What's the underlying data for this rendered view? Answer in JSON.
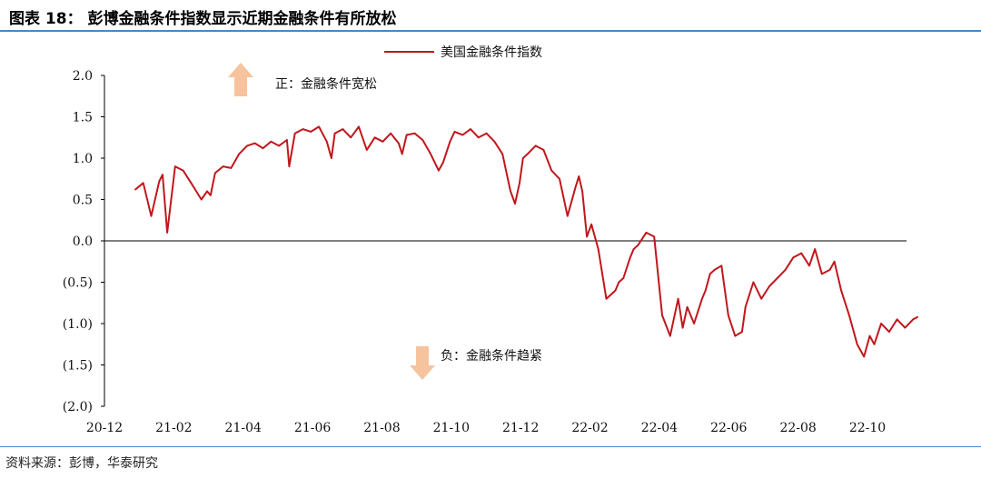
{
  "figure": {
    "title": "图表 18：   彭博金融条件指数显示近期金融条件有所放松",
    "source": "资料来源：彭博，华泰研究"
  },
  "annotations": {
    "upper": "正：金融条件宽松",
    "lower": "负：金融条件趋紧"
  },
  "colors": {
    "series": "#c0171d",
    "arrow": "#f6c39d",
    "rule": "#4a86c5"
  },
  "chart_data": {
    "type": "line",
    "title": "",
    "xlabel": "",
    "ylabel": "",
    "ylim": [
      -2.0,
      2.0
    ],
    "y_ticks": [
      "2.0",
      "1.5",
      "1.0",
      "0.5",
      "0.0",
      "(0.5)",
      "(1.0)",
      "(1.5)",
      "(2.0)"
    ],
    "x_ticks": [
      "20-12",
      "21-02",
      "21-04",
      "21-06",
      "21-08",
      "21-10",
      "21-12",
      "22-02",
      "22-04",
      "22-06",
      "22-08",
      "22-10"
    ],
    "legend": "top-center",
    "grid": false,
    "series": [
      {
        "name": "美国金融条件指数",
        "x": [
          "2020-12-28",
          "2021-01-04",
          "2021-01-11",
          "2021-01-18",
          "2021-01-21",
          "2021-01-25",
          "2021-02-01",
          "2021-02-08",
          "2021-02-15",
          "2021-02-24",
          "2021-03-01",
          "2021-03-04",
          "2021-03-08",
          "2021-03-15",
          "2021-03-22",
          "2021-03-29",
          "2021-04-05",
          "2021-04-12",
          "2021-04-19",
          "2021-04-26",
          "2021-05-03",
          "2021-05-10",
          "2021-05-12",
          "2021-05-17",
          "2021-05-24",
          "2021-05-31",
          "2021-06-07",
          "2021-06-14",
          "2021-06-18",
          "2021-06-21",
          "2021-06-28",
          "2021-07-05",
          "2021-07-12",
          "2021-07-19",
          "2021-07-26",
          "2021-08-02",
          "2021-08-09",
          "2021-08-16",
          "2021-08-19",
          "2021-08-23",
          "2021-08-30",
          "2021-09-06",
          "2021-09-13",
          "2021-09-20",
          "2021-09-24",
          "2021-09-30",
          "2021-10-04",
          "2021-10-11",
          "2021-10-18",
          "2021-10-25",
          "2021-11-01",
          "2021-11-08",
          "2021-11-15",
          "2021-11-22",
          "2021-11-26",
          "2021-11-30",
          "2021-12-03",
          "2021-12-07",
          "2021-12-14",
          "2021-12-21",
          "2021-12-28",
          "2022-01-04",
          "2022-01-11",
          "2022-01-18",
          "2022-01-21",
          "2022-01-24",
          "2022-01-28",
          "2022-02-01",
          "2022-02-07",
          "2022-02-14",
          "2022-02-22",
          "2022-02-25",
          "2022-03-01",
          "2022-03-07",
          "2022-03-10",
          "2022-03-14",
          "2022-03-21",
          "2022-03-28",
          "2022-04-04",
          "2022-04-11",
          "2022-04-18",
          "2022-04-22",
          "2022-04-26",
          "2022-05-02",
          "2022-05-09",
          "2022-05-12",
          "2022-05-16",
          "2022-05-20",
          "2022-05-26",
          "2022-06-01",
          "2022-06-07",
          "2022-06-13",
          "2022-06-16",
          "2022-06-23",
          "2022-06-30",
          "2022-07-07",
          "2022-07-14",
          "2022-07-21",
          "2022-07-28",
          "2022-08-04",
          "2022-08-11",
          "2022-08-16",
          "2022-08-22",
          "2022-08-29",
          "2022-09-02",
          "2022-09-08",
          "2022-09-15",
          "2022-09-22",
          "2022-09-28",
          "2022-10-03",
          "2022-10-07",
          "2022-10-13",
          "2022-10-20",
          "2022-10-27",
          "2022-11-03",
          "2022-11-10",
          "2022-11-14"
        ],
        "values": [
          0.62,
          0.7,
          0.3,
          0.72,
          0.8,
          0.1,
          0.9,
          0.85,
          0.7,
          0.5,
          0.6,
          0.55,
          0.82,
          0.9,
          0.88,
          1.05,
          1.15,
          1.18,
          1.12,
          1.2,
          1.15,
          1.22,
          0.9,
          1.3,
          1.35,
          1.32,
          1.38,
          1.2,
          1.0,
          1.3,
          1.35,
          1.25,
          1.38,
          1.1,
          1.25,
          1.2,
          1.3,
          1.18,
          1.05,
          1.28,
          1.3,
          1.22,
          1.05,
          0.85,
          0.95,
          1.2,
          1.32,
          1.28,
          1.35,
          1.25,
          1.3,
          1.2,
          1.05,
          0.6,
          0.45,
          0.7,
          1.0,
          1.05,
          1.15,
          1.1,
          0.85,
          0.75,
          0.3,
          0.65,
          0.78,
          0.6,
          0.05,
          0.2,
          -0.1,
          -0.7,
          -0.6,
          -0.5,
          -0.45,
          -0.2,
          -0.1,
          -0.05,
          0.1,
          0.05,
          -0.9,
          -1.15,
          -0.7,
          -1.05,
          -0.8,
          -1.0,
          -0.7,
          -0.6,
          -0.4,
          -0.35,
          -0.3,
          -0.9,
          -1.15,
          -1.1,
          -0.8,
          -0.5,
          -0.7,
          -0.55,
          -0.45,
          -0.35,
          -0.2,
          -0.15,
          -0.3,
          -0.1,
          -0.4,
          -0.35,
          -0.25,
          -0.6,
          -0.9,
          -1.25,
          -1.4,
          -1.15,
          -1.25,
          -1.0,
          -1.1,
          -0.95,
          -1.05,
          -0.95,
          -0.92
        ]
      }
    ]
  }
}
